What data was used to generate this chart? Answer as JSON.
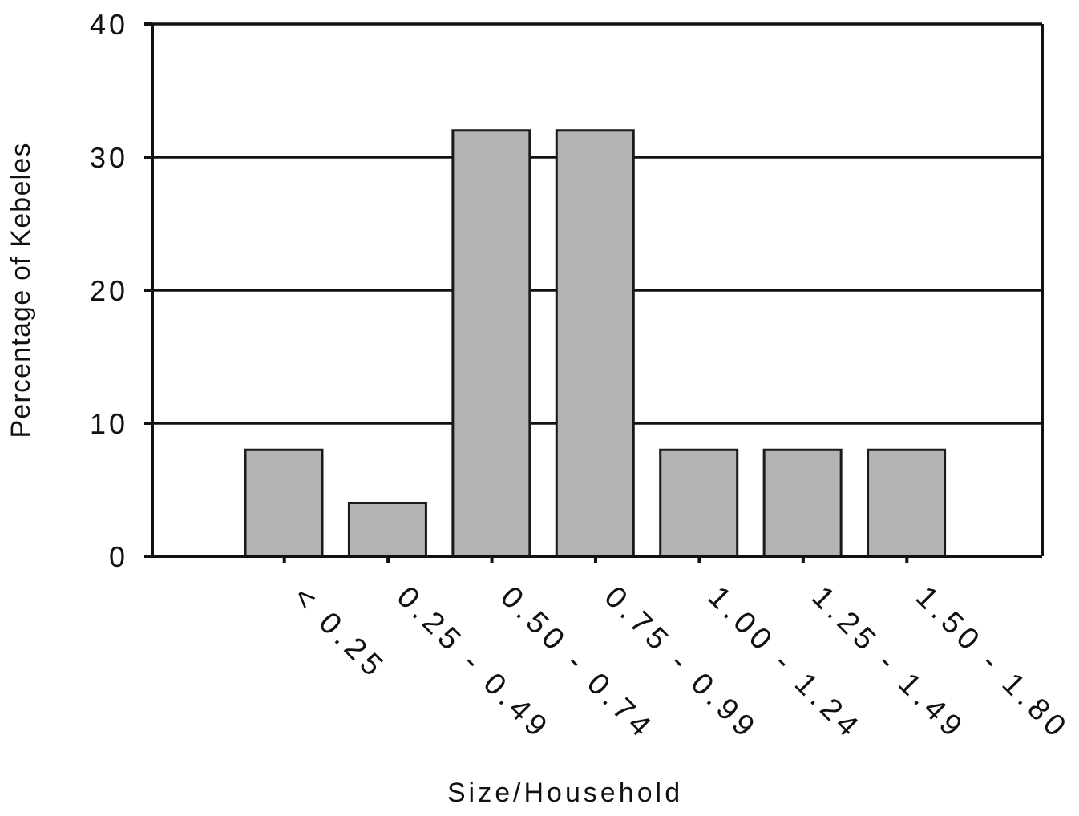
{
  "chart_data": {
    "type": "bar",
    "xlabel": "Size/Household",
    "ylabel": "Percentage of Kebeles",
    "categories": [
      "< 0.25",
      "0.25 - 0.49",
      "0.50 - 0.74",
      "0.75 - 0.99",
      "1.00 - 1.24",
      "1.25 - 1.49",
      "1.50 - 1.80"
    ],
    "values": [
      8,
      4,
      32,
      32,
      8,
      8,
      8
    ],
    "color": "#b3b3b3",
    "ylim": [
      0,
      40
    ],
    "yticks": [
      0,
      10,
      20,
      30,
      40
    ],
    "grid": "y"
  }
}
